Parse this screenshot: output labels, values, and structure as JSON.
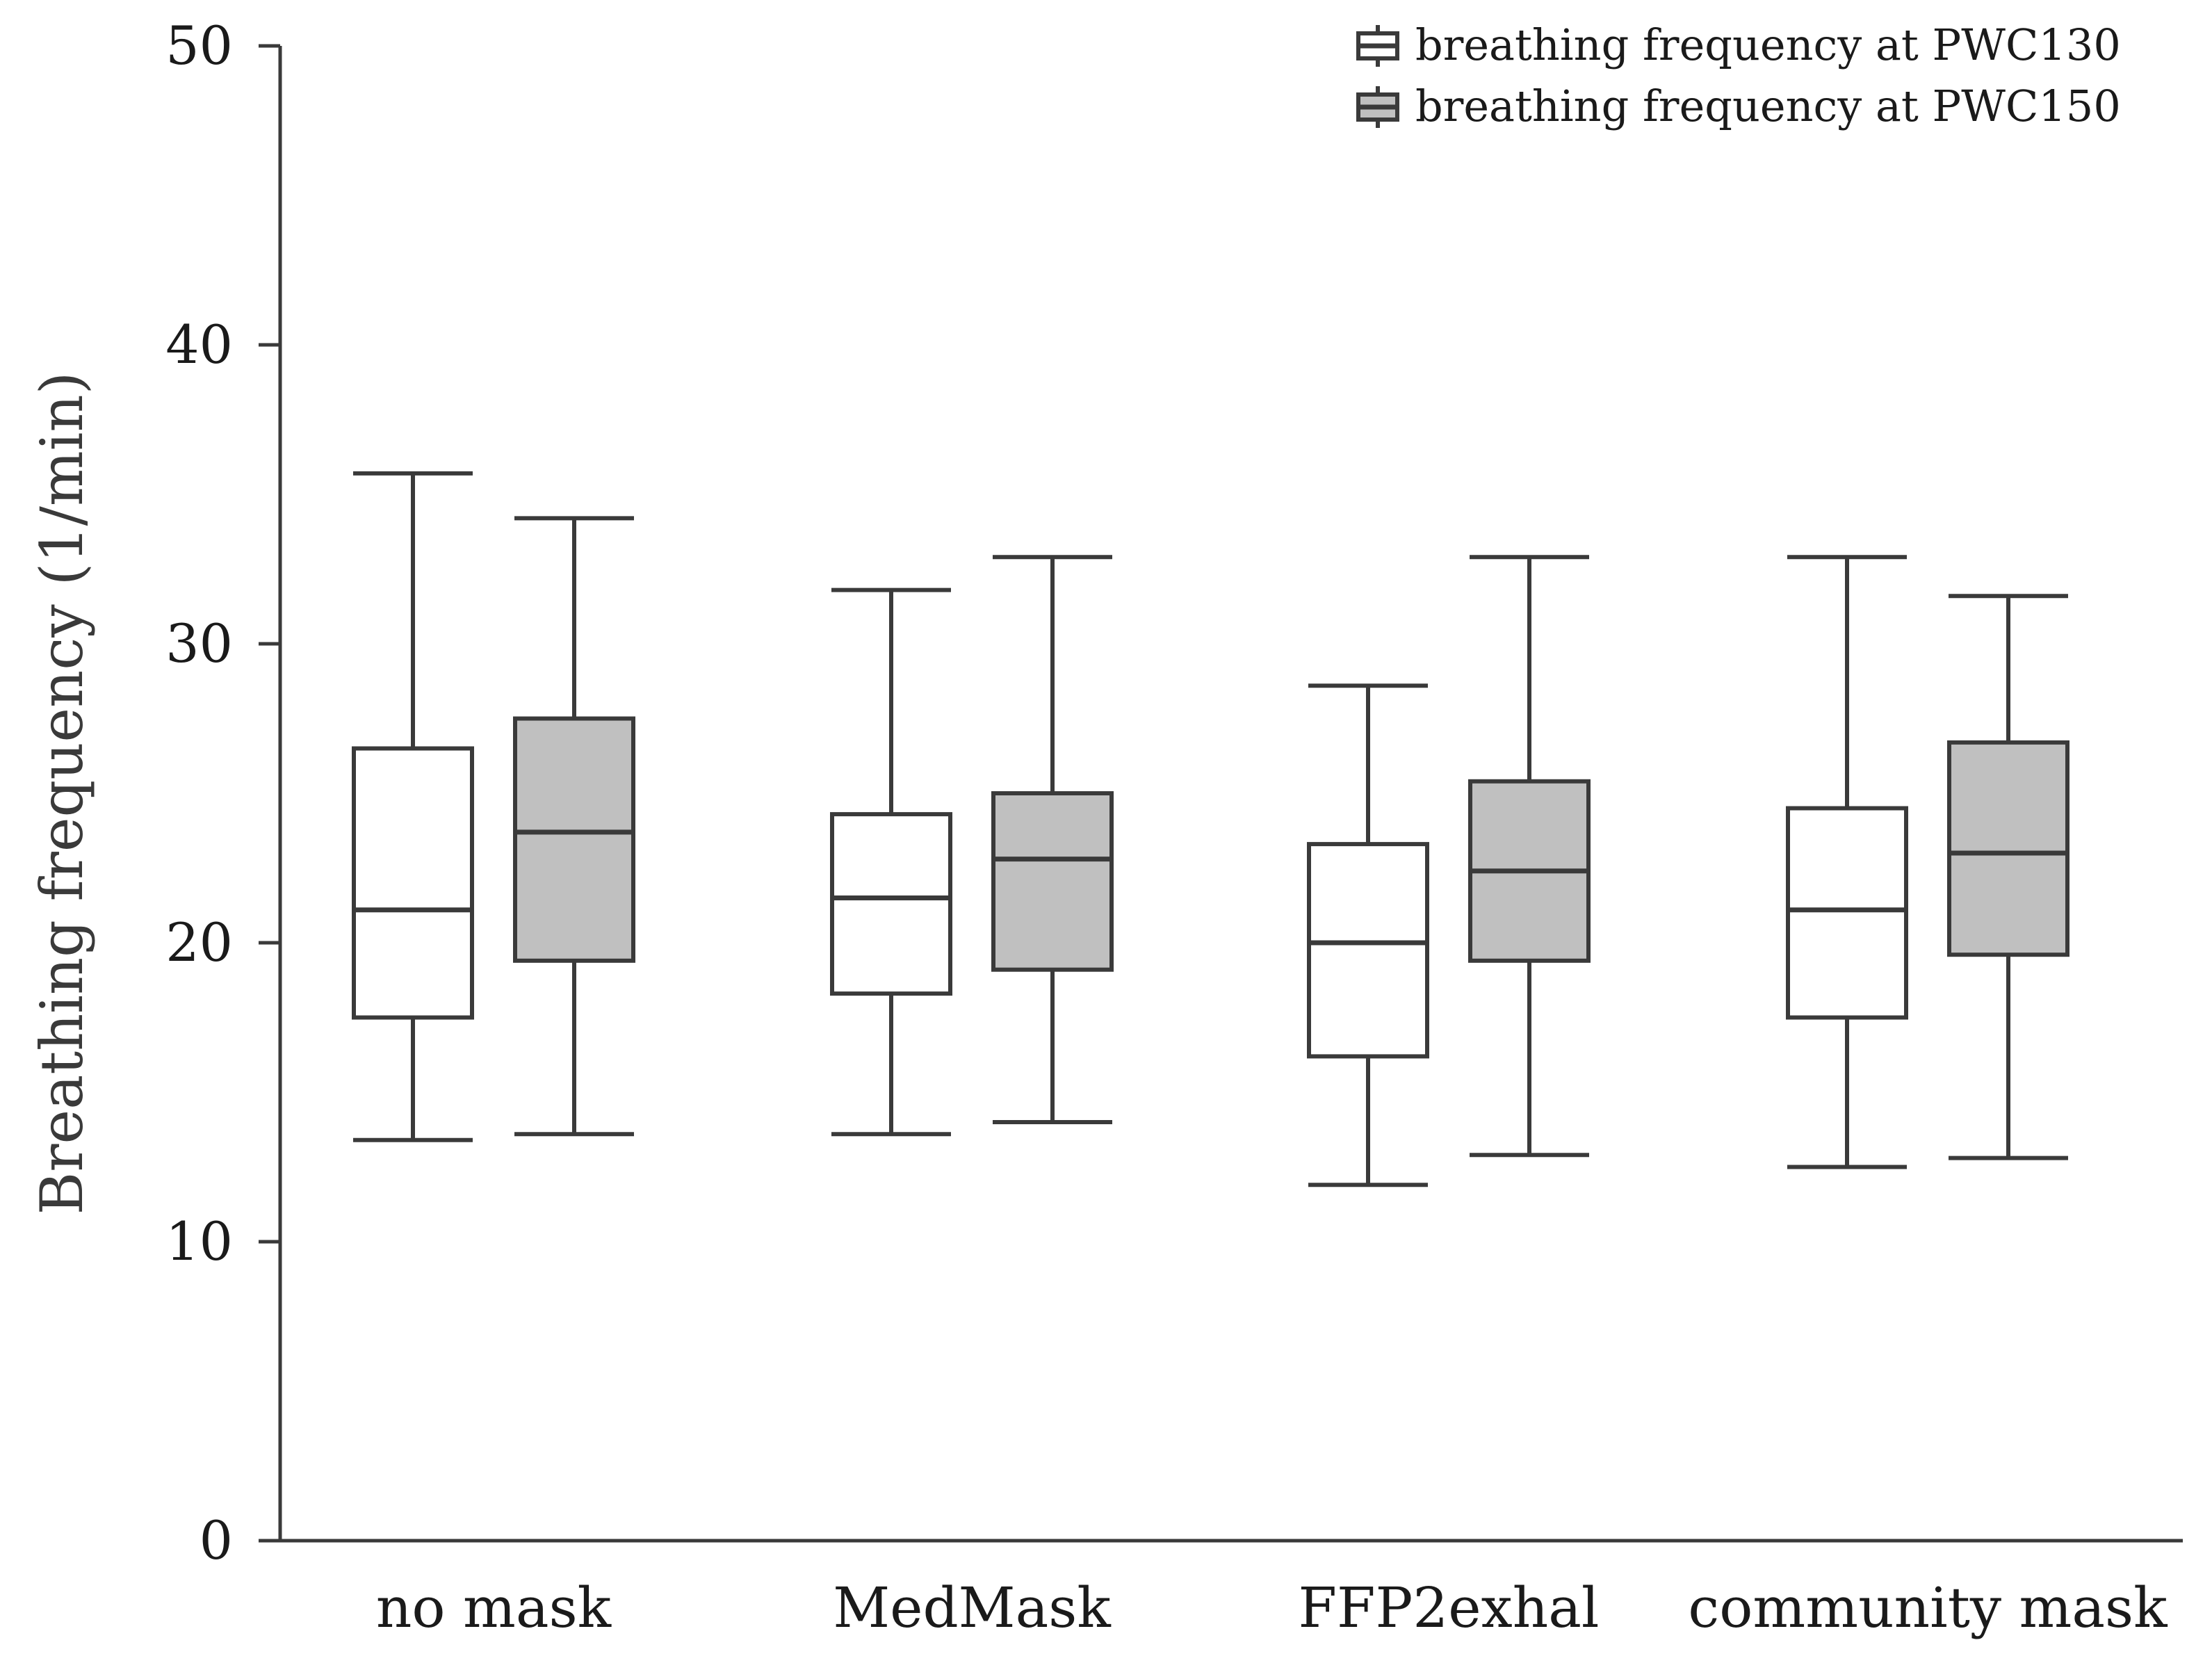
{
  "chart_data": {
    "type": "boxplot",
    "title": "",
    "xlabel": "",
    "ylabel": "Breathing frequency (1/min)",
    "ylim": [
      0,
      50
    ],
    "yticks": [
      0,
      10,
      20,
      30,
      40,
      50
    ],
    "grid": false,
    "legend_position": "top-right",
    "categories": [
      "no mask",
      "MedMask",
      "FFP2exhal",
      "community mask"
    ],
    "series": [
      {
        "name": "breathing frequency at PWC130",
        "color": "#ffffff",
        "boxes": [
          {
            "whisker_low": 13.4,
            "q1": 17.5,
            "median": 21.1,
            "q3": 26.5,
            "whisker_high": 35.7
          },
          {
            "whisker_low": 13.6,
            "q1": 18.3,
            "median": 21.5,
            "q3": 24.3,
            "whisker_high": 31.8
          },
          {
            "whisker_low": 11.9,
            "q1": 16.2,
            "median": 20.0,
            "q3": 23.3,
            "whisker_high": 28.6
          },
          {
            "whisker_low": 12.5,
            "q1": 17.5,
            "median": 21.1,
            "q3": 24.5,
            "whisker_high": 32.9
          }
        ]
      },
      {
        "name": "breathing frequency at PWC150",
        "color": "#c0c0c0",
        "boxes": [
          {
            "whisker_low": 13.6,
            "q1": 19.4,
            "median": 23.7,
            "q3": 27.5,
            "whisker_high": 34.2
          },
          {
            "whisker_low": 14.0,
            "q1": 19.1,
            "median": 22.8,
            "q3": 25.0,
            "whisker_high": 32.9
          },
          {
            "whisker_low": 12.9,
            "q1": 19.4,
            "median": 22.4,
            "q3": 25.4,
            "whisker_high": 32.9
          },
          {
            "whisker_low": 12.8,
            "q1": 19.6,
            "median": 23.0,
            "q3": 26.7,
            "whisker_high": 31.6
          }
        ]
      }
    ]
  }
}
